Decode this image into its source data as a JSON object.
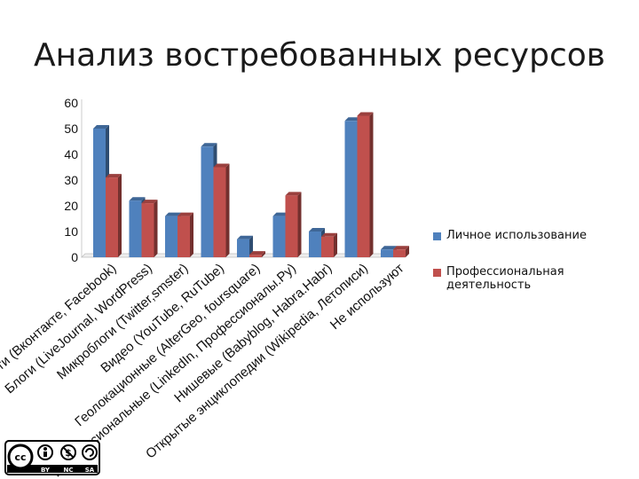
{
  "slide": {
    "title": "Анализ востребованных ресурсов"
  },
  "chart_data": {
    "type": "bar",
    "three_d": true,
    "ylim": [
      0,
      60
    ],
    "y_ticks": [
      0,
      10,
      20,
      30,
      40,
      50,
      60
    ],
    "categories": [
      "Социальные сети (Вконтакте, Facebook)",
      "Блоги (LiveJournal, WordPress)",
      "Микроблоги (Twitter,smster)",
      "Видео (YouTube, RuTube)",
      "Геолокационные (AlterGeo, foursquare)",
      "Профессиональные (LinkedIn, Профессионалы.Ру)",
      "Нишевые (Babyblog, Habra.Habr)",
      "Открытые энциклопедии (Wikipedia, Летописи)",
      "Не используют"
    ],
    "series": [
      {
        "name": "Личное использование",
        "color": "#4f81bd",
        "values": [
          50,
          22,
          16,
          43,
          7,
          16,
          10,
          53,
          3
        ]
      },
      {
        "name": "Профессиональная деятельность",
        "color": "#c0504d",
        "values": [
          31,
          21,
          16,
          35,
          1,
          24,
          8,
          55,
          3
        ]
      }
    ],
    "legend_position": "right"
  },
  "license": {
    "by": "BY",
    "nc": "NC",
    "sa": "SA"
  }
}
